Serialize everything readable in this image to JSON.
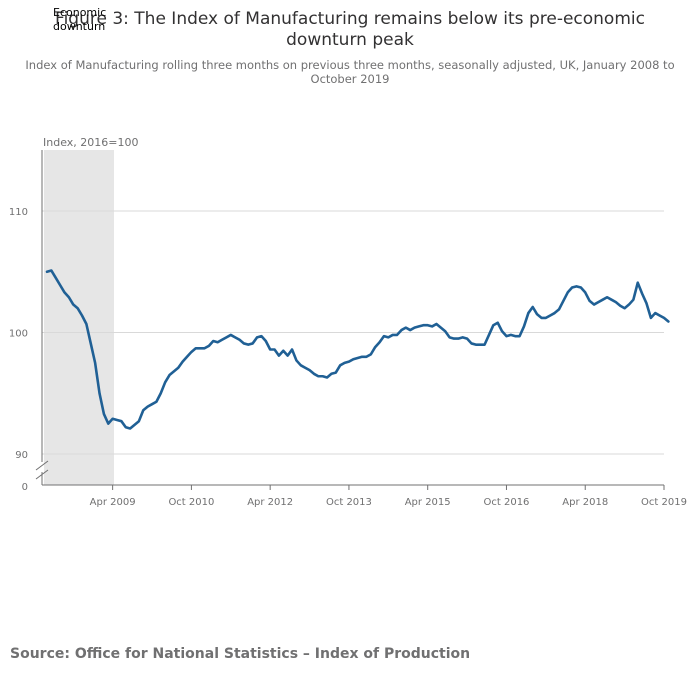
{
  "chart_data": {
    "type": "line",
    "title_lines": [
      "Figure 3: The Index of Manufacturing remains below its pre-economic",
      "downturn peak"
    ],
    "subtitle_lines": [
      "Index of Manufacturing rolling three months on previous three months, seasonally adjusted, UK, January 2008 to",
      "October 2019"
    ],
    "ylabel": "Index, 2016=100",
    "source": "Source: Office for National Statistics – Index of Production",
    "shaded_band": {
      "label_lines": [
        "Economic",
        "downturn"
      ],
      "start": "2008-01",
      "end": "2009-06",
      "color": "#e6e6e6"
    },
    "x_ticks": [
      "Apr 2009",
      "Oct 2010",
      "Apr 2012",
      "Oct 2013",
      "Apr 2015",
      "Oct 2016",
      "Apr 2018",
      "Oct 2019"
    ],
    "x_tick_months": [
      "2009-04",
      "2010-10",
      "2012-04",
      "2013-10",
      "2015-04",
      "2016-10",
      "2018-04",
      "2019-10"
    ],
    "y_ticks": [
      90,
      100,
      110
    ],
    "y_break_tick": 0,
    "ylim": [
      87.5,
      115
    ],
    "grid": true,
    "series": [
      {
        "color": "#206095",
        "start_month": "2008-01",
        "values": [
          105.0,
          105.1,
          104.5,
          103.9,
          103.3,
          102.9,
          102.3,
          102.0,
          101.4,
          100.7,
          99.1,
          97.5,
          95.0,
          93.3,
          92.5,
          92.9,
          92.8,
          92.7,
          92.2,
          92.1,
          92.4,
          92.7,
          93.6,
          93.9,
          94.1,
          94.3,
          95.0,
          95.9,
          96.5,
          96.8,
          97.1,
          97.6,
          98.0,
          98.4,
          98.7,
          98.7,
          98.7,
          98.9,
          99.3,
          99.2,
          99.4,
          99.6,
          99.8,
          99.6,
          99.4,
          99.1,
          99.0,
          99.1,
          99.6,
          99.7,
          99.3,
          98.6,
          98.6,
          98.1,
          98.5,
          98.1,
          98.6,
          97.7,
          97.3,
          97.1,
          96.9,
          96.6,
          96.4,
          96.4,
          96.3,
          96.6,
          96.7,
          97.3,
          97.5,
          97.6,
          97.8,
          97.9,
          98.0,
          98.0,
          98.2,
          98.8,
          99.2,
          99.7,
          99.6,
          99.8,
          99.8,
          100.2,
          100.4,
          100.2,
          100.4,
          100.5,
          100.6,
          100.6,
          100.5,
          100.7,
          100.4,
          100.1,
          99.6,
          99.5,
          99.5,
          99.6,
          99.5,
          99.1,
          99.0,
          99.0,
          99.0,
          99.8,
          100.6,
          100.8,
          100.1,
          99.7,
          99.8,
          99.7,
          99.7,
          100.5,
          101.6,
          102.1,
          101.5,
          101.2,
          101.2,
          101.4,
          101.6,
          101.9,
          102.6,
          103.3,
          103.7,
          103.8,
          103.7,
          103.3,
          102.6,
          102.3,
          102.5,
          102.7,
          102.9,
          102.7,
          102.5,
          102.2,
          102.0,
          102.3,
          102.7,
          104.1,
          103.2,
          102.4,
          101.2,
          101.6,
          101.4,
          101.2,
          100.9
        ]
      }
    ]
  }
}
